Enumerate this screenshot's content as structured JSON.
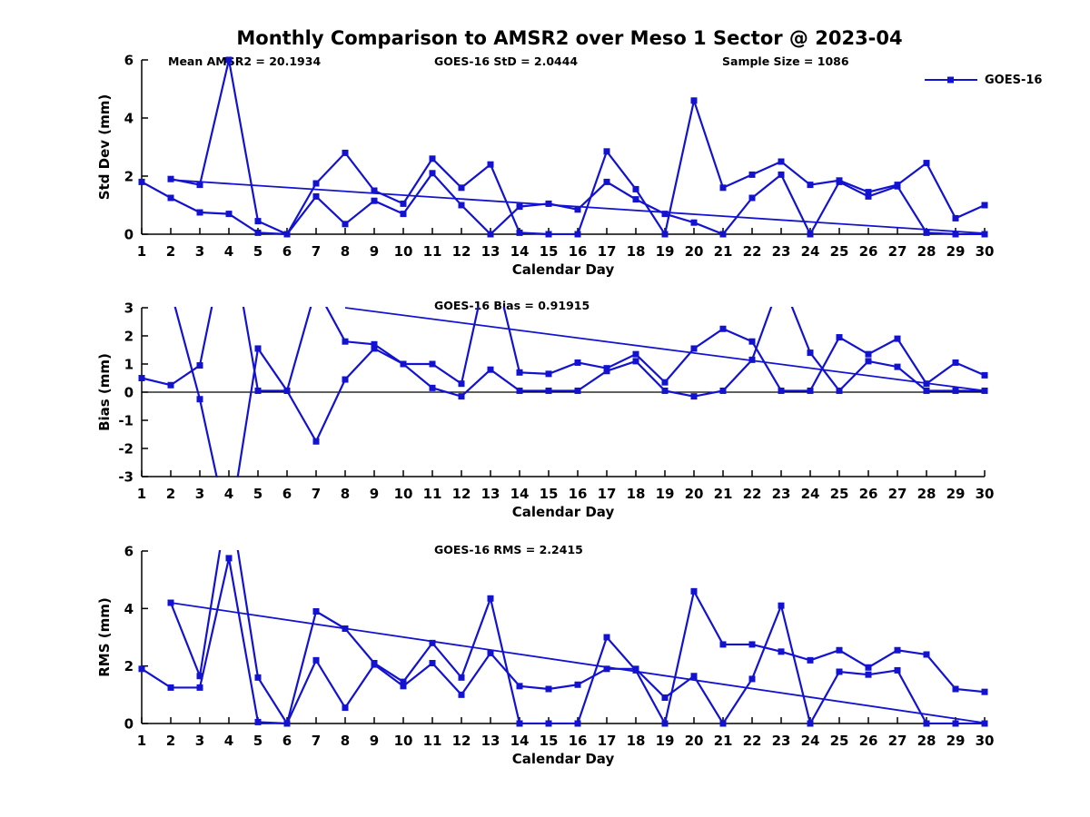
{
  "title": "Monthly Comparison to AMSR2 over Meso 1 Sector @ 2023-04",
  "legend": {
    "label": "GOES-16"
  },
  "colors": {
    "series": "#1212d0",
    "axis": "#000000",
    "zero_line": "#000000"
  },
  "chart_data": [
    {
      "type": "line",
      "name": "std-dev",
      "ylabel": "Std Dev (mm)",
      "xlabel": "Calendar Day",
      "ylim": [
        0,
        6
      ],
      "yticks": [
        0,
        2,
        4,
        6
      ],
      "grid": false,
      "legend_position": "top-right-outside",
      "x": [
        1,
        2,
        3,
        4,
        5,
        6,
        7,
        8,
        9,
        10,
        11,
        12,
        13,
        14,
        15,
        16,
        17,
        18,
        19,
        20,
        21,
        22,
        23,
        24,
        25,
        26,
        27,
        28,
        29,
        30
      ],
      "annotations": [
        "Mean AMSR2 = 20.1934",
        "GOES-16 StD = 2.0444",
        "Sample Size = 1086"
      ],
      "series": [
        {
          "name": "GOES-16",
          "values": [
            null,
            1.9,
            1.7,
            6.0,
            0.45,
            0,
            1.75,
            2.8,
            1.5,
            1.05,
            2.6,
            1.6,
            2.4,
            0.05,
            0,
            0,
            2.85,
            1.55,
            0,
            4.6,
            1.6,
            2.05,
            2.5,
            1.7,
            1.85,
            1.45,
            1.7,
            2.45,
            0.55,
            1.0
          ]
        },
        {
          "name": "GOES-16",
          "values": [
            1.8,
            1.25,
            0.75,
            0.7,
            0.05,
            0,
            1.3,
            0.35,
            1.15,
            0.7,
            2.1,
            1.0,
            0,
            0.95,
            1.05,
            0.85,
            1.8,
            1.2,
            0.7,
            0.4,
            0,
            1.25,
            2.05,
            0,
            1.8,
            1.3,
            1.65,
            0.05,
            0,
            0
          ]
        }
      ],
      "trendline": {
        "x": [
          2,
          30
        ],
        "y": [
          1.87,
          0.03
        ]
      },
      "zero_line": false
    },
    {
      "type": "line",
      "name": "bias",
      "ylabel": "Bias (mm)",
      "xlabel": "Calendar Day",
      "ylim": [
        -3,
        3
      ],
      "yticks": [
        -3,
        -2,
        -1,
        0,
        1,
        2,
        3
      ],
      "grid": false,
      "x": [
        1,
        2,
        3,
        4,
        5,
        6,
        7,
        8,
        9,
        10,
        11,
        12,
        13,
        14,
        15,
        16,
        17,
        18,
        19,
        20,
        21,
        22,
        23,
        24,
        25,
        26,
        27,
        28,
        29,
        30
      ],
      "annotations": [
        "GOES-16 Bias = 0.91915"
      ],
      "series": [
        {
          "name": "GOES-16",
          "values": [
            null,
            3.6,
            -0.25,
            -5.0,
            1.55,
            0.05,
            -1.75,
            0.45,
            1.55,
            1.0,
            0.15,
            -0.15,
            0.8,
            0.05,
            0.05,
            0.05,
            0.75,
            1.1,
            0.05,
            -0.15,
            0.05,
            1.15,
            4.0,
            1.4,
            0.05,
            1.1,
            0.9,
            0.05,
            0.05,
            0.05
          ]
        },
        {
          "name": "GOES-16",
          "values": [
            0.5,
            0.25,
            0.95,
            6.0,
            0.05,
            0.05,
            3.7,
            1.8,
            1.7,
            1.0,
            1.0,
            0.3,
            5.0,
            0.7,
            0.65,
            1.05,
            0.85,
            1.35,
            0.35,
            1.55,
            2.25,
            1.8,
            0.05,
            0.05,
            1.95,
            1.35,
            1.9,
            0.3,
            1.05,
            0.6
          ]
        }
      ],
      "trendline": {
        "x": [
          8,
          30
        ],
        "y": [
          3.0,
          0.05
        ]
      },
      "zero_line": true
    },
    {
      "type": "line",
      "name": "rms",
      "ylabel": "RMS (mm)",
      "xlabel": "Calendar Day",
      "ylim": [
        0,
        6
      ],
      "yticks": [
        0,
        2,
        4,
        6
      ],
      "grid": false,
      "x": [
        1,
        2,
        3,
        4,
        5,
        6,
        7,
        8,
        9,
        10,
        11,
        12,
        13,
        14,
        15,
        16,
        17,
        18,
        19,
        20,
        21,
        22,
        23,
        24,
        25,
        26,
        27,
        28,
        29,
        30
      ],
      "annotations": [
        "GOES-16 RMS = 2.2415"
      ],
      "series": [
        {
          "name": "GOES-16",
          "values": [
            null,
            4.2,
            1.65,
            8.0,
            1.6,
            0,
            3.9,
            3.3,
            2.1,
            1.45,
            2.8,
            1.6,
            4.35,
            0,
            0,
            0,
            3.0,
            1.85,
            0,
            4.6,
            2.75,
            2.75,
            2.5,
            2.2,
            2.55,
            1.95,
            2.55,
            2.4,
            1.2,
            1.1
          ]
        },
        {
          "name": "GOES-16",
          "values": [
            1.9,
            1.25,
            1.25,
            5.75,
            0.05,
            0,
            2.2,
            0.55,
            2.05,
            1.3,
            2.1,
            1.0,
            2.45,
            1.3,
            1.2,
            1.35,
            1.9,
            1.9,
            0.9,
            1.65,
            0,
            1.55,
            4.1,
            0,
            1.8,
            1.7,
            1.85,
            0,
            0,
            0
          ]
        }
      ],
      "trendline": {
        "x": [
          2,
          30
        ],
        "y": [
          4.2,
          0.02
        ]
      },
      "zero_line": false
    }
  ]
}
